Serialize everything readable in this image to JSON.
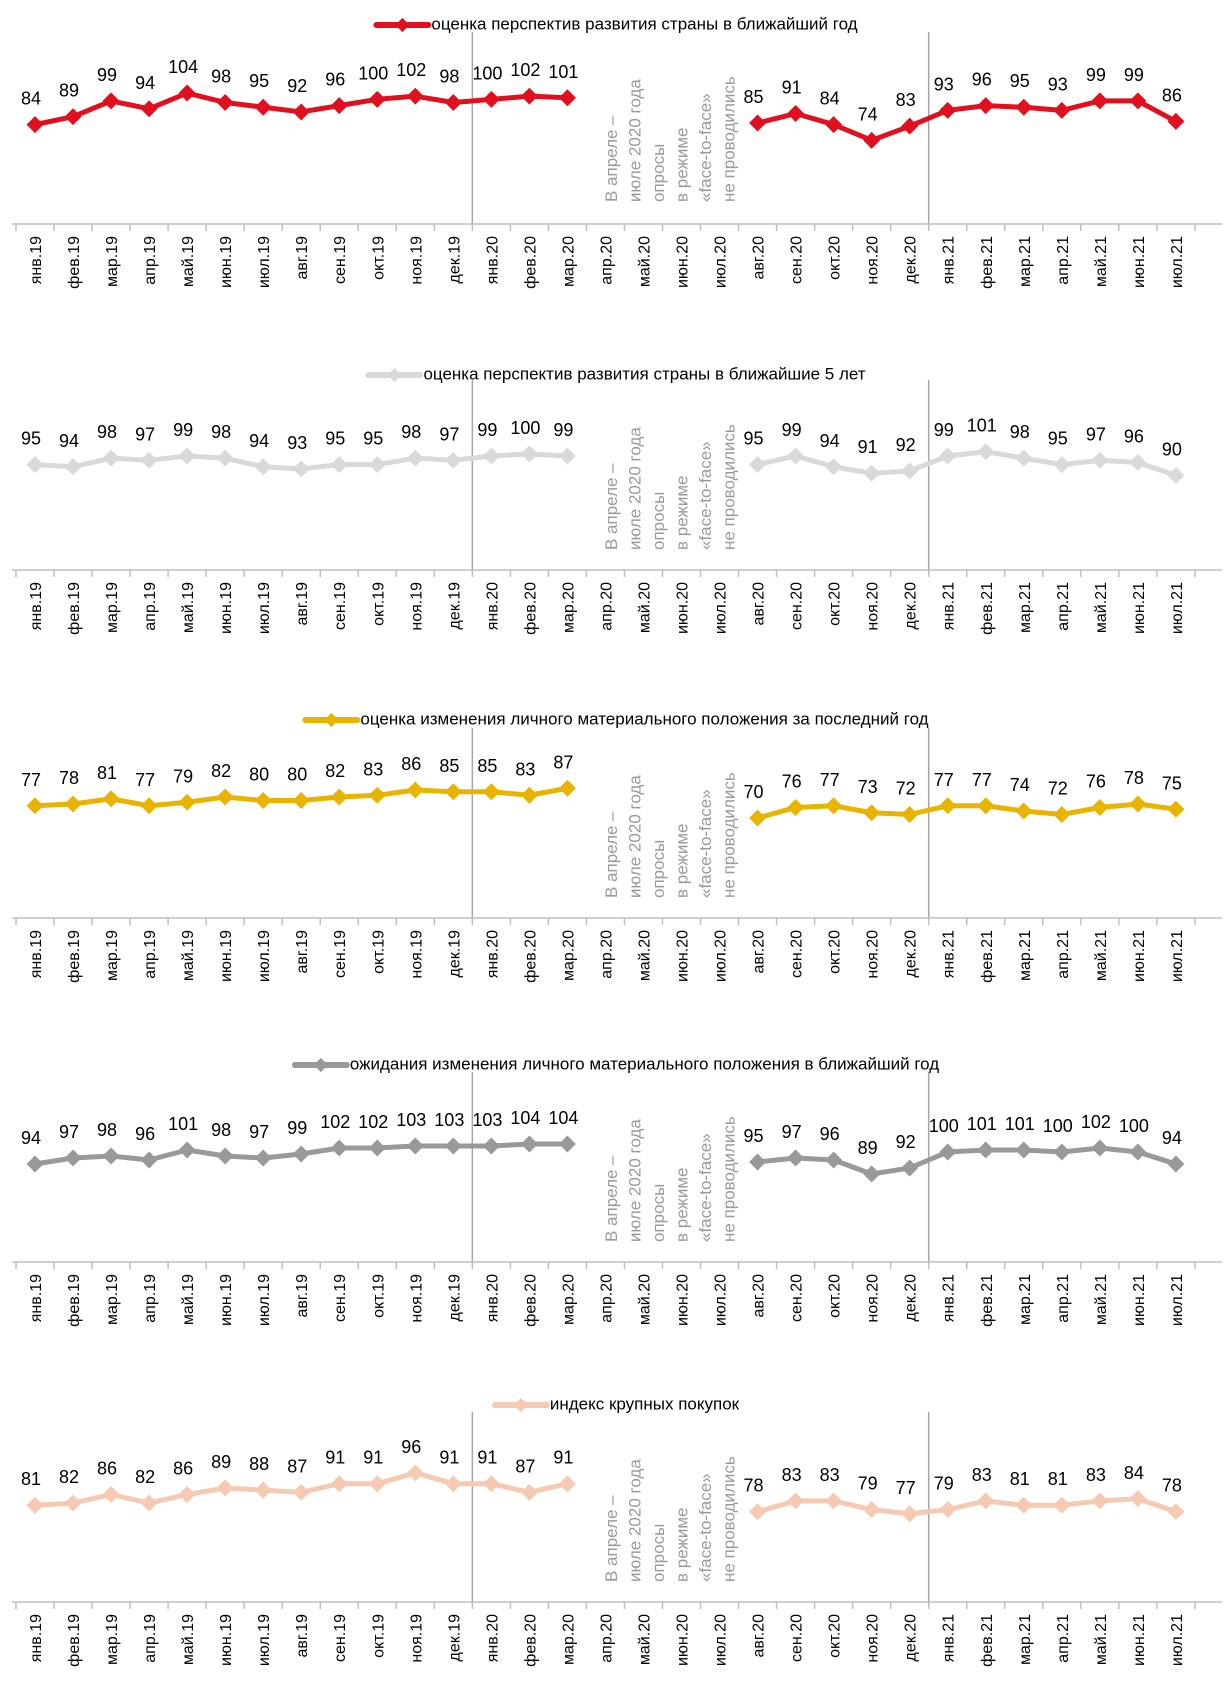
{
  "x_labels": [
    "янв.19",
    "фев.19",
    "мар.19",
    "апр.19",
    "май.19",
    "июн.19",
    "июл.19",
    "авг.19",
    "сен.19",
    "окт.19",
    "ноя.19",
    "дек.19",
    "янв.20",
    "фев.20",
    "мар.20",
    "апр.20",
    "май.20",
    "июн.20",
    "июл.20",
    "авг.20",
    "сен.20",
    "окт.20",
    "ноя.20",
    "дек.20",
    "янв.21",
    "фев.21",
    "мар.21",
    "апр.21",
    "май.21",
    "июн.21",
    "июл.21"
  ],
  "gap_note": [
    "В апреле –",
    "июле 2020 года",
    "опросы",
    "в режиме",
    "«face-to-face»",
    "не проводились"
  ],
  "chart_data": [
    {
      "type": "line",
      "legend": "оценка перспектив развития страны в ближайший год",
      "color": "#e0101f",
      "values": [
        84,
        89,
        99,
        94,
        104,
        98,
        95,
        92,
        96,
        100,
        102,
        98,
        100,
        102,
        101,
        null,
        null,
        null,
        null,
        85,
        91,
        84,
        74,
        83,
        93,
        96,
        95,
        93,
        99,
        99,
        86
      ],
      "ylim": [
        40,
        130
      ],
      "grid": false,
      "vertical_separators_after": [
        "дек.19",
        "дек.20"
      ]
    },
    {
      "type": "line",
      "legend": "оценка перспектив развития страны в ближайшие 5 лет",
      "color": "#d9d9d9",
      "values": [
        95,
        94,
        98,
        97,
        99,
        98,
        94,
        93,
        95,
        95,
        98,
        97,
        99,
        100,
        99,
        null,
        null,
        null,
        null,
        95,
        99,
        94,
        91,
        92,
        99,
        101,
        98,
        95,
        97,
        96,
        90
      ],
      "ylim": [
        60,
        125
      ],
      "grid": false,
      "vertical_separators_after": [
        "дек.19",
        "дек.20"
      ]
    },
    {
      "type": "line",
      "legend": "оценка изменения личного материального положения за последний год",
      "color": "#e8b400",
      "values": [
        77,
        78,
        81,
        77,
        79,
        82,
        80,
        80,
        82,
        83,
        86,
        85,
        85,
        83,
        87,
        null,
        null,
        null,
        null,
        70,
        76,
        77,
        73,
        72,
        77,
        77,
        74,
        72,
        76,
        78,
        75
      ],
      "ylim": [
        30,
        110
      ],
      "grid": false,
      "vertical_separators_after": [
        "дек.19",
        "дек.20"
      ]
    },
    {
      "type": "line",
      "legend": "ожидания изменения личного материального положения в ближайший год",
      "color": "#999999",
      "values": [
        94,
        97,
        98,
        96,
        101,
        98,
        97,
        99,
        102,
        102,
        103,
        103,
        103,
        104,
        104,
        null,
        null,
        null,
        null,
        95,
        97,
        96,
        89,
        92,
        100,
        101,
        101,
        100,
        102,
        100,
        94
      ],
      "ylim": [
        60,
        130
      ],
      "grid": false,
      "vertical_separators_after": [
        "дек.19",
        "дек.20"
      ]
    },
    {
      "type": "line",
      "legend": "индекс крупных покупок",
      "color": "#f5c9b2",
      "values": [
        81,
        82,
        86,
        82,
        86,
        89,
        88,
        87,
        91,
        91,
        96,
        91,
        91,
        87,
        91,
        null,
        null,
        null,
        null,
        78,
        83,
        83,
        79,
        77,
        79,
        83,
        81,
        81,
        83,
        84,
        78
      ],
      "ylim": [
        50,
        115
      ],
      "grid": false,
      "vertical_separators_after": [
        "дек.19",
        "дек.20"
      ]
    }
  ]
}
